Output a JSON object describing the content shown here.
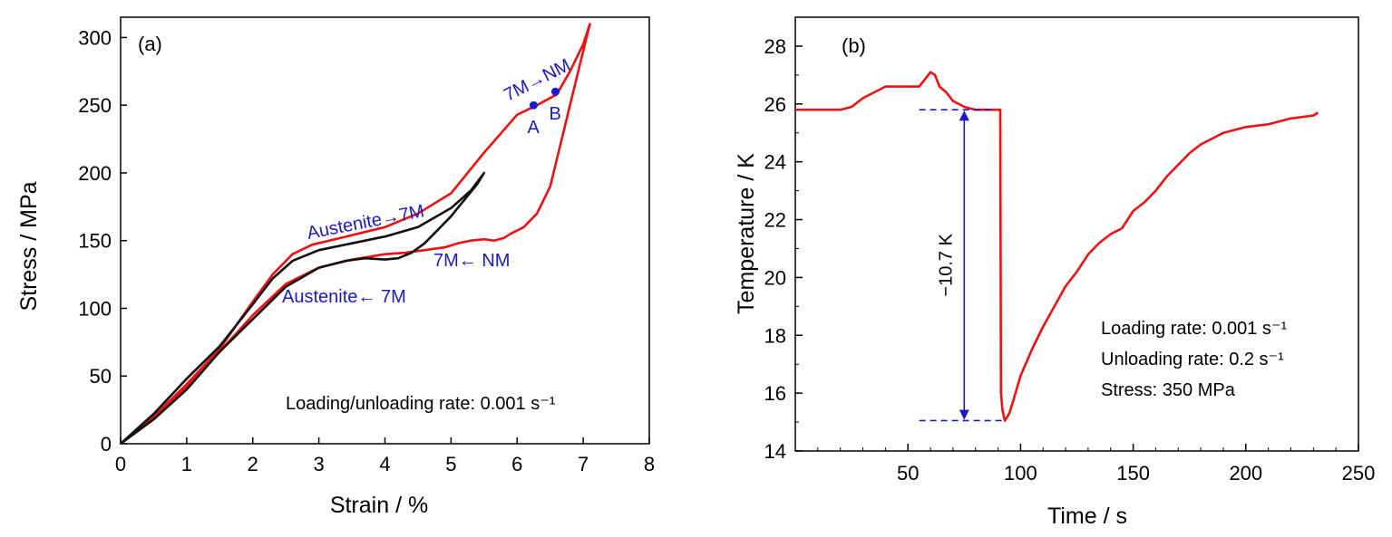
{
  "colors": {
    "red": "#ee1111",
    "black": "#111111",
    "blue": "#1a1ac8"
  },
  "chart_data": [
    {
      "type": "line",
      "panel_label": "(a)",
      "xlabel": "Strain / %",
      "ylabel": "Stress / MPa",
      "xlim": [
        0,
        8
      ],
      "ylim": [
        0,
        315
      ],
      "xticks": [
        0,
        1,
        2,
        3,
        4,
        5,
        6,
        7,
        8
      ],
      "yticks": [
        0,
        50,
        100,
        150,
        200,
        250,
        300
      ],
      "series": [
        {
          "color": "#ee1111",
          "x": [
            0,
            0.5,
            1.0,
            1.5,
            2.0,
            2.3,
            2.6,
            2.9,
            3.5,
            4.0,
            4.5,
            5.0,
            5.5,
            6.0,
            6.3,
            6.6,
            6.8,
            7.0,
            7.1,
            7.0,
            6.9,
            6.8,
            6.7,
            6.6,
            6.5,
            6.3,
            6.1,
            5.9,
            5.8,
            5.65,
            5.5,
            5.3,
            5.1,
            4.9,
            4.6,
            4.3,
            4.0,
            3.5,
            3.0,
            2.5,
            2.0,
            1.5,
            1.0,
            0.5,
            0
          ],
          "y": [
            0,
            20,
            44,
            70,
            105,
            125,
            140,
            147,
            154,
            160,
            170,
            185,
            215,
            243,
            250,
            258,
            275,
            295,
            310,
            290,
            270,
            250,
            230,
            210,
            190,
            170,
            160,
            155,
            152,
            150,
            151,
            150,
            148,
            145,
            143,
            141,
            140,
            136,
            130,
            118,
            95,
            68,
            42,
            18,
            0
          ]
        },
        {
          "color": "#111111",
          "x": [
            0,
            0.5,
            1.0,
            1.5,
            2.0,
            2.3,
            2.6,
            3.0,
            3.5,
            4.0,
            4.5,
            5.0,
            5.3,
            5.5,
            5.4,
            5.2,
            5.0,
            4.8,
            4.6,
            4.4,
            4.2,
            4.0,
            3.7,
            3.4,
            3.0,
            2.5,
            2.0,
            1.5,
            1.0,
            0.5,
            0
          ],
          "y": [
            0,
            22,
            48,
            72,
            103,
            122,
            135,
            143,
            148,
            153,
            160,
            174,
            187,
            200,
            192,
            180,
            168,
            158,
            148,
            141,
            137,
            136,
            137,
            135,
            130,
            116,
            92,
            68,
            40,
            18,
            0
          ]
        }
      ],
      "points": [
        {
          "label": "A",
          "x": 6.25,
          "y": 250
        },
        {
          "label": "B",
          "x": 6.58,
          "y": 260
        }
      ],
      "annotations": {
        "austenite_to_7m": "Austenite→7M",
        "seven_m_to_nm": "7M→NM",
        "seven_m_from_nm": "7M← NM",
        "austenite_from_7m": "Austenite← 7M",
        "rate": "Loading/unloading rate: 0.001 s⁻¹"
      }
    },
    {
      "type": "line",
      "panel_label": "(b)",
      "xlabel": "Time / s",
      "ylabel": "Temperature / K",
      "xlim": [
        0,
        250
      ],
      "ylim": [
        14,
        29
      ],
      "xticks": [
        50,
        100,
        150,
        200,
        250
      ],
      "yticks": [
        14,
        16,
        18,
        20,
        22,
        24,
        26,
        28
      ],
      "series": [
        {
          "color": "#ee1111",
          "x": [
            0,
            10,
            20,
            25,
            30,
            35,
            40,
            45,
            55,
            58,
            60,
            62,
            64,
            67,
            70,
            75,
            80,
            84,
            88,
            91,
            91.3,
            92,
            93,
            95,
            97,
            100,
            105,
            110,
            115,
            120,
            125,
            130,
            135,
            140,
            145,
            150,
            155,
            160,
            165,
            170,
            175,
            180,
            185,
            190,
            200,
            210,
            220,
            230,
            232
          ],
          "y": [
            25.8,
            25.8,
            25.8,
            25.9,
            26.2,
            26.4,
            26.6,
            26.6,
            26.6,
            26.9,
            27.1,
            27.0,
            26.6,
            26.4,
            26.1,
            25.9,
            25.8,
            25.8,
            25.8,
            25.8,
            16.0,
            15.4,
            15.05,
            15.3,
            15.8,
            16.6,
            17.5,
            18.3,
            19.0,
            19.7,
            20.2,
            20.8,
            21.2,
            21.5,
            21.7,
            22.3,
            22.6,
            23.0,
            23.5,
            23.9,
            24.3,
            24.6,
            24.8,
            25.0,
            25.2,
            25.3,
            25.5,
            25.6,
            25.7
          ]
        }
      ],
      "delta_marker": {
        "label": "−10.7 K",
        "x": 75,
        "y_top": 25.8,
        "y_bottom": 15.05
      },
      "notes": [
        "Loading rate: 0.001 s⁻¹",
        "Unloading rate: 0.2 s⁻¹",
        "Stress: 350 MPa"
      ]
    }
  ]
}
